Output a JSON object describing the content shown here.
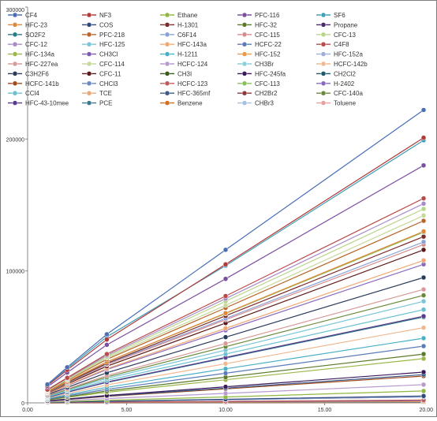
{
  "chart_data": {
    "type": "line",
    "title": "",
    "xlabel": "",
    "ylabel": "",
    "xlim": [
      0,
      20
    ],
    "ylim": [
      0,
      300000
    ],
    "x": [
      1,
      2,
      4,
      10,
      20
    ],
    "x_ticks": [
      0,
      5,
      10,
      15,
      20
    ],
    "x_tick_labels": [
      "0.00",
      "5.00",
      "10.00",
      "15.00",
      "20.00"
    ],
    "y_ticks": [
      0,
      100000,
      200000,
      300000
    ],
    "y_tick_labels": [
      "0",
      "100000",
      "200000",
      "300000"
    ],
    "legend_position": "top",
    "legend_columns": 5,
    "gridlines": false,
    "series": [
      {
        "name": "CF4",
        "color": "#4a6fb5",
        "values": [
          14000,
          27000,
          52000,
          116000,
          222000
        ]
      },
      {
        "name": "NF3",
        "color": "#b23a3a",
        "values": [
          13000,
          25000,
          48000,
          105000,
          201000
        ]
      },
      {
        "name": "Ethane",
        "color": "#8fb83f",
        "values": [
          500,
          1000,
          2000,
          4500,
          9000
        ]
      },
      {
        "name": "PFC-116",
        "color": "#7a4fa0",
        "values": [
          12000,
          23000,
          44000,
          94000,
          180000
        ]
      },
      {
        "name": "SF6",
        "color": "#3fa0b8",
        "values": [
          13500,
          26000,
          50000,
          104000,
          199000
        ]
      },
      {
        "name": "HFC-23",
        "color": "#e0883a",
        "values": [
          8500,
          16000,
          31000,
          68000,
          130000
        ]
      },
      {
        "name": "COS",
        "color": "#2e4a7a",
        "values": [
          300,
          600,
          1200,
          2700,
          5200
        ]
      },
      {
        "name": "H-1301",
        "color": "#7a2a2a",
        "values": [
          8200,
          15500,
          30000,
          66000,
          126000
        ]
      },
      {
        "name": "HFC-32",
        "color": "#5a7a2a",
        "values": [
          2400,
          4600,
          9000,
          19500,
          37000
        ]
      },
      {
        "name": "Propane",
        "color": "#4a2a6a",
        "values": [
          300,
          550,
          1100,
          2400,
          4500
        ]
      },
      {
        "name": "SO2F2",
        "color": "#2a7a8a",
        "values": [
          4200,
          8000,
          15500,
          34000,
          65000
        ]
      },
      {
        "name": "PFC-218",
        "color": "#b8652a",
        "values": [
          9000,
          17000,
          33000,
          72000,
          138000
        ]
      },
      {
        "name": "C6F14",
        "color": "#8aa3d6",
        "values": [
          8000,
          15000,
          29500,
          64000,
          122000
        ]
      },
      {
        "name": "CFC-115",
        "color": "#d68a8a",
        "values": [
          7800,
          14800,
          29000,
          63000,
          120000
        ]
      },
      {
        "name": "CFC-13",
        "color": "#b8d68a",
        "values": [
          9500,
          18000,
          35000,
          77000,
          147000
        ]
      },
      {
        "name": "CFC-12",
        "color": "#a88ac6",
        "values": [
          9800,
          18500,
          36000,
          79000,
          151000
        ]
      },
      {
        "name": "HFC-125",
        "color": "#7ac6d6",
        "values": [
          5000,
          9500,
          18500,
          40000,
          77000
        ]
      },
      {
        "name": "HFC-143a",
        "color": "#f0a870",
        "values": [
          7000,
          13300,
          26000,
          56500,
          108000
        ]
      },
      {
        "name": "HCFC-22",
        "color": "#5a7ab8",
        "values": [
          2800,
          5300,
          10300,
          22500,
          43000
        ]
      },
      {
        "name": "C4F8",
        "color": "#b84a4a",
        "values": [
          10000,
          19000,
          37000,
          81000,
          155000
        ]
      },
      {
        "name": "HFC-134a",
        "color": "#9ab84a",
        "values": [
          2200,
          4100,
          8000,
          17500,
          33500
        ]
      },
      {
        "name": "CH3Cl",
        "color": "#7a5ab0",
        "values": [
          100,
          200,
          400,
          900,
          1700
        ]
      },
      {
        "name": "H-1211",
        "color": "#4ab0c6",
        "values": [
          3200,
          6100,
          11800,
          25800,
          49000
        ]
      },
      {
        "name": "HFC-152",
        "color": "#e89a4a",
        "values": [
          60,
          110,
          220,
          480,
          900
        ]
      },
      {
        "name": "HFC-152a",
        "color": "#9ab0d8",
        "values": [
          300,
          560,
          1100,
          2400,
          4500
        ]
      },
      {
        "name": "HFC-227ea",
        "color": "#d89a9a",
        "values": [
          5600,
          10600,
          20700,
          45000,
          86000
        ]
      },
      {
        "name": "CFC-114",
        "color": "#c6d89a",
        "values": [
          9200,
          17500,
          34000,
          74000,
          142000
        ]
      },
      {
        "name": "HCFC-124",
        "color": "#b89ad0",
        "values": [
          900,
          1700,
          3300,
          7200,
          13800
        ]
      },
      {
        "name": "CH3Br",
        "color": "#8ad0dc",
        "values": [
          40,
          80,
          150,
          330,
          630
        ]
      },
      {
        "name": "HCFC-142b",
        "color": "#f0b890",
        "values": [
          3700,
          7000,
          13600,
          29700,
          57000
        ]
      },
      {
        "name": "C3H2F6",
        "color": "#2a3a5a",
        "values": [
          6200,
          11700,
          22800,
          49800,
          95000
        ]
      },
      {
        "name": "CFC-11",
        "color": "#5a1a1a",
        "values": [
          7500,
          14300,
          27800,
          60500,
          116000
        ]
      },
      {
        "name": "CH3I",
        "color": "#3a5a1a",
        "values": [
          20,
          40,
          80,
          170,
          330
        ]
      },
      {
        "name": "HFC-245fa",
        "color": "#3a1a5a",
        "values": [
          1500,
          2900,
          5600,
          12200,
          23300
        ]
      },
      {
        "name": "CH2Cl2",
        "color": "#1a5a6a",
        "values": [
          50,
          100,
          190,
          420,
          800
        ]
      },
      {
        "name": "HCFC-141b",
        "color": "#a04a1a",
        "values": [
          1300,
          2500,
          4900,
          10600,
          20300
        ]
      },
      {
        "name": "CHCl3",
        "color": "#6a8ac0",
        "values": [
          30,
          60,
          120,
          260,
          500
        ]
      },
      {
        "name": "HCFC-123",
        "color": "#c05a5a",
        "values": [
          140,
          270,
          520,
          1130,
          2150
        ]
      },
      {
        "name": "CFC-113",
        "color": "#8ac05a",
        "values": [
          8400,
          16000,
          31100,
          67700,
          129300
        ]
      },
      {
        "name": "H-2402",
        "color": "#8a6ac0",
        "values": [
          6800,
          13000,
          25300,
          55000,
          105000
        ]
      },
      {
        "name": "CCl4",
        "color": "#6ac0d0",
        "values": [
          4600,
          8800,
          17000,
          37000,
          70700
        ]
      },
      {
        "name": "TCE",
        "color": "#e8a878",
        "values": [
          30,
          55,
          100,
          230,
          440
        ]
      },
      {
        "name": "HFC-365mf",
        "color": "#3a5a8a",
        "values": [
          1400,
          2700,
          5200,
          11200,
          21400
        ]
      },
      {
        "name": "CH2Br2",
        "color": "#8a3a3a",
        "values": [
          20,
          40,
          80,
          170,
          330
        ]
      },
      {
        "name": "CFC-140a",
        "color": "#6a8a3a",
        "values": [
          5300,
          10100,
          19600,
          42600,
          81500
        ]
      },
      {
        "name": "HFC-43-10mee",
        "color": "#5a3a8a",
        "values": [
          4300,
          8100,
          15800,
          34400,
          65700
        ]
      },
      {
        "name": "PCE",
        "color": "#3a7a8a",
        "values": [
          40,
          80,
          150,
          330,
          640
        ]
      },
      {
        "name": "Benzene",
        "color": "#d07020",
        "values": [
          0,
          0,
          10,
          20,
          40
        ]
      },
      {
        "name": "CHBr3",
        "color": "#a8c0e0",
        "values": [
          10,
          20,
          40,
          90,
          170
        ]
      },
      {
        "name": "Toluene",
        "color": "#e8a0a0",
        "values": [
          0,
          0,
          0,
          10,
          20
        ]
      }
    ]
  }
}
